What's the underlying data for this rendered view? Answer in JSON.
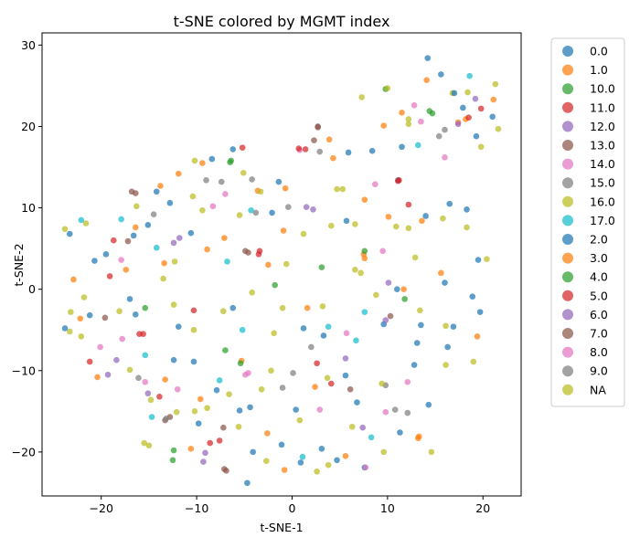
{
  "chart_data": {
    "type": "scatter",
    "title": "t-SNE colored by MGMT index",
    "xlabel": "t-SNE-1",
    "ylabel": "t-SNE-2",
    "xlim": [
      -26.2,
      24
    ],
    "ylim": [
      -25.4,
      31.5
    ],
    "xticks": [
      -20,
      -10,
      0,
      10,
      20
    ],
    "yticks": [
      -20,
      -10,
      0,
      10,
      20,
      30
    ],
    "grid": false,
    "legend_position": "right-outside-top",
    "series": [
      {
        "name": "0.0",
        "color": "#1f77b4",
        "points": [
          [
            -23.3,
            6.8
          ],
          [
            -19.5,
            4.3
          ],
          [
            -14.2,
            12
          ],
          [
            -8.4,
            16
          ],
          [
            -6.2,
            17.2
          ],
          [
            -1.4,
            13.2
          ],
          [
            5.9,
            16.8
          ],
          [
            8.4,
            17
          ],
          [
            11.1,
            13.4
          ],
          [
            14.2,
            28.4
          ],
          [
            15.6,
            26.4
          ],
          [
            17.9,
            22.3
          ],
          [
            19.3,
            18.8
          ],
          [
            21,
            21.2
          ],
          [
            14,
            9
          ],
          [
            18.3,
            9.8
          ],
          [
            16,
            0.8
          ],
          [
            19.5,
            3.6
          ],
          [
            11,
            0
          ],
          [
            5.7,
            8.4
          ],
          [
            -2.1,
            9.4
          ],
          [
            -10.6,
            6.9
          ],
          [
            -12.8,
            10.6
          ],
          [
            -15.1,
            7.9
          ],
          [
            -16.4,
            -3.1
          ],
          [
            -11.9,
            -4.6
          ],
          [
            -6.2,
            -2.3
          ],
          [
            1.2,
            -4.8
          ],
          [
            3.3,
            -5.7
          ],
          [
            9.6,
            -4.3
          ],
          [
            13.1,
            -6.6
          ],
          [
            16.9,
            -4.6
          ],
          [
            19.7,
            -2.8
          ],
          [
            -10.3,
            -8.9
          ],
          [
            -7.9,
            -12.4
          ],
          [
            -4.4,
            -14.5
          ],
          [
            0.4,
            -14.8
          ],
          [
            6.8,
            -13.9
          ],
          [
            12.8,
            -9.3
          ],
          [
            14.3,
            -14.2
          ],
          [
            -9.8,
            -16.5
          ],
          [
            -4.7,
            -23.8
          ],
          [
            0.9,
            -21.3
          ],
          [
            4.7,
            -21
          ],
          [
            7.6,
            -21.9
          ]
        ]
      },
      {
        "name": "1.0",
        "color": "#ff7f0e",
        "points": [
          [
            -11.9,
            14.2
          ],
          [
            -9.4,
            15.5
          ],
          [
            -0.7,
            12.4
          ],
          [
            3.9,
            18.4
          ],
          [
            9.6,
            20.1
          ],
          [
            14.1,
            25.7
          ],
          [
            18.2,
            20.9
          ],
          [
            21.1,
            23.3
          ],
          [
            7.6,
            11
          ],
          [
            10.1,
            8.9
          ],
          [
            13.6,
            8.4
          ],
          [
            15.6,
            2
          ],
          [
            -13.4,
            3.2
          ],
          [
            -7.1,
            6.3
          ],
          [
            -0.9,
            7.2
          ],
          [
            1.6,
            -2.3
          ],
          [
            7.5,
            4.3
          ],
          [
            11.7,
            0
          ],
          [
            19.4,
            -5.8
          ],
          [
            -13.3,
            -11.1
          ],
          [
            -9.6,
            -13.5
          ],
          [
            -5.3,
            -8.8
          ],
          [
            -2.6,
            -17.7
          ],
          [
            2.4,
            -12
          ],
          [
            5.6,
            -20.5
          ],
          [
            13.2,
            -18.3
          ],
          [
            -17.4,
            2.4
          ],
          [
            -20.4,
            -10.8
          ],
          [
            -22.2,
            -3.6
          ]
        ]
      },
      {
        "name": "10.0",
        "color": "#2ca02c",
        "points": [
          [
            9.8,
            24.6
          ],
          [
            14.4,
            21.9
          ],
          [
            -6.4,
            15.8
          ],
          [
            -15.4,
            -2.3
          ],
          [
            -7,
            -7.5
          ],
          [
            3.1,
            2.7
          ],
          [
            -12.4,
            -19.8
          ]
        ]
      },
      {
        "name": "11.0",
        "color": "#d62728",
        "points": [
          [
            -5.2,
            17.4
          ],
          [
            1.4,
            17.2
          ],
          [
            11.2,
            13.4
          ],
          [
            19.8,
            22.2
          ],
          [
            -18.7,
            6
          ],
          [
            -3.4,
            4.7
          ],
          [
            -16,
            -5.5
          ],
          [
            -21.2,
            -8.9
          ],
          [
            2.6,
            -9.1
          ],
          [
            -7.6,
            -18.6
          ],
          [
            -10.3,
            -2.6
          ]
        ]
      },
      {
        "name": "12.0",
        "color": "#9467bd",
        "points": [
          [
            19.2,
            23.4
          ],
          [
            -11.8,
            6.3
          ],
          [
            2.2,
            9.8
          ],
          [
            -18.4,
            -8.7
          ],
          [
            10.1,
            0.8
          ],
          [
            -15.1,
            -12.8
          ],
          [
            7.4,
            -17
          ],
          [
            -9.1,
            -20.1
          ]
        ]
      },
      {
        "name": "13.0",
        "color": "#8c564b",
        "points": [
          [
            2.7,
            20
          ],
          [
            -16.8,
            12
          ],
          [
            -17.2,
            5.9
          ],
          [
            -4.9,
            4.7
          ],
          [
            2.3,
            18.3
          ],
          [
            -19.6,
            -3.5
          ],
          [
            -13.3,
            -16.1
          ],
          [
            -7.2,
            -17
          ],
          [
            10.3,
            -3.3
          ],
          [
            -6.9,
            -22.3
          ]
        ]
      },
      {
        "name": "14.0",
        "color": "#e377c2",
        "points": [
          [
            0.8,
            17.1
          ],
          [
            8.7,
            12.9
          ],
          [
            12.8,
            22.6
          ],
          [
            16,
            16.2
          ],
          [
            -17.9,
            3.6
          ],
          [
            -8.3,
            10.2
          ],
          [
            -15.4,
            -11.4
          ],
          [
            -4.9,
            -10.5
          ],
          [
            5.7,
            -5.4
          ],
          [
            9.8,
            -15.1
          ],
          [
            7.7,
            -21.9
          ],
          [
            -20.1,
            -7.1
          ]
        ]
      },
      {
        "name": "15.0",
        "color": "#7f7f7f",
        "points": [
          [
            -4.2,
            13.5
          ],
          [
            2.9,
            16.9
          ],
          [
            15.4,
            18.8
          ],
          [
            -0.4,
            10.1
          ],
          [
            -14.5,
            9.2
          ],
          [
            2,
            -7.1
          ],
          [
            -16.1,
            -10.9
          ],
          [
            -1,
            -12.1
          ],
          [
            9.8,
            -11.8
          ],
          [
            12.1,
            -15.2
          ],
          [
            -7.4,
            13.2
          ]
        ]
      },
      {
        "name": "16.0",
        "color": "#bcbd22",
        "points": [
          [
            -23.8,
            7.4
          ],
          [
            -16.3,
            10.2
          ],
          [
            -10.4,
            11.4
          ],
          [
            -5.5,
            9.1
          ],
          [
            1.2,
            6.8
          ],
          [
            5.3,
            12.3
          ],
          [
            10,
            24.7
          ],
          [
            12.2,
            20.3
          ],
          [
            16.8,
            24.1
          ],
          [
            21.3,
            25.2
          ],
          [
            -12.4,
            -1.9
          ],
          [
            -4.2,
            -0.4
          ],
          [
            6.6,
            2.4
          ],
          [
            12.2,
            7.5
          ],
          [
            -21.8,
            -1
          ],
          [
            -15,
            -19.2
          ],
          [
            -10.3,
            -5
          ],
          [
            -2.2,
            -10
          ],
          [
            3.7,
            -10.9
          ],
          [
            9.4,
            -11.6
          ],
          [
            16.1,
            -9.3
          ],
          [
            -12.1,
            -15.1
          ],
          [
            -5.6,
            -16.9
          ],
          [
            3.8,
            -21.6
          ],
          [
            -23.3,
            -5.2
          ],
          [
            -21.6,
            8.1
          ],
          [
            6.6,
            8
          ],
          [
            18.3,
            7.6
          ],
          [
            -13.5,
            1.3
          ],
          [
            -1,
            -2.3
          ]
        ]
      },
      {
        "name": "17.0",
        "color": "#17becf",
        "points": [
          [
            -22.1,
            8.5
          ],
          [
            -17.9,
            8.6
          ],
          [
            -14.2,
            5.1
          ],
          [
            -6.8,
            3.4
          ],
          [
            -4.3,
            9.7
          ],
          [
            6.7,
            -6.3
          ],
          [
            7.6,
            -2.8
          ],
          [
            13.2,
            17.7
          ],
          [
            18.6,
            26.2
          ],
          [
            -15.4,
            -8.1
          ],
          [
            -5.2,
            -5
          ],
          [
            3.8,
            -4.6
          ],
          [
            -14.7,
            -15.7
          ],
          [
            -7.6,
            -11.2
          ],
          [
            1.1,
            -20.6
          ],
          [
            8.3,
            -18.2
          ]
        ]
      },
      {
        "name": "2.0",
        "color": "#1f77b4",
        "points": [
          [
            -21.2,
            -3.2
          ],
          [
            -12.4,
            -8.7
          ],
          [
            -4.1,
            -20
          ],
          [
            3.1,
            -19.6
          ],
          [
            11.3,
            -17.6
          ],
          [
            16.3,
            -7.1
          ],
          [
            18.9,
            -0.9
          ],
          [
            16.5,
            10.5
          ],
          [
            11.5,
            17.5
          ],
          [
            17,
            24.1
          ],
          [
            -20.7,
            3.5
          ],
          [
            -17,
            -1.2
          ],
          [
            -5.5,
            -14.9
          ],
          [
            -1.1,
            -19.1
          ],
          [
            5.6,
            -10.6
          ],
          [
            13.5,
            -4.4
          ],
          [
            -23.8,
            -4.8
          ],
          [
            -16.6,
            6.6
          ]
        ]
      },
      {
        "name": "3.0",
        "color": "#ff7f0e",
        "points": [
          [
            -13.8,
            12.7
          ],
          [
            -3.6,
            12.1
          ],
          [
            4.3,
            16.1
          ],
          [
            11.5,
            21.7
          ],
          [
            17.4,
            20.5
          ],
          [
            -16.4,
            7.6
          ],
          [
            -8.9,
            4.9
          ],
          [
            -2.5,
            3
          ],
          [
            7.6,
            3.8
          ],
          [
            13.3,
            -18.1
          ],
          [
            -0.8,
            -22.2
          ],
          [
            -10.6,
            -19.6
          ],
          [
            -22.9,
            1.2
          ]
        ]
      },
      {
        "name": "4.0",
        "color": "#2ca02c",
        "points": [
          [
            -6.5,
            15.6
          ],
          [
            14.7,
            21.6
          ],
          [
            -1.8,
            0.5
          ],
          [
            7.6,
            4.7
          ],
          [
            -5.4,
            -9.1
          ],
          [
            -12.5,
            -21
          ],
          [
            11.8,
            -1.2
          ]
        ]
      },
      {
        "name": "5.0",
        "color": "#d62728",
        "points": [
          [
            0.7,
            17.3
          ],
          [
            11.1,
            13.3
          ],
          [
            -19.1,
            1.6
          ],
          [
            -15.6,
            -5.5
          ],
          [
            -3.5,
            4.3
          ],
          [
            4.1,
            -11.6
          ],
          [
            -8.6,
            -18.9
          ],
          [
            -13.9,
            -13.2
          ],
          [
            12.2,
            10.4
          ],
          [
            18.5,
            21.1
          ]
        ]
      },
      {
        "name": "6.0",
        "color": "#9467bd",
        "points": [
          [
            17.4,
            20.3
          ],
          [
            -12.4,
            5.7
          ],
          [
            1.5,
            10.1
          ],
          [
            -19.3,
            -10.5
          ],
          [
            5.6,
            -8.5
          ],
          [
            -9.3,
            -21.2
          ],
          [
            9.8,
            -3.8
          ]
        ]
      },
      {
        "name": "7.0",
        "color": "#8c564b",
        "points": [
          [
            2.7,
            19.9
          ],
          [
            -16.4,
            11.8
          ],
          [
            -4.6,
            4.5
          ],
          [
            -12.8,
            -15.7
          ],
          [
            6.1,
            -12.3
          ],
          [
            -7.1,
            -22.1
          ]
        ]
      },
      {
        "name": "8.0",
        "color": "#e377c2",
        "points": [
          [
            13.5,
            20.6
          ],
          [
            -7,
            11.7
          ],
          [
            9.5,
            4.7
          ],
          [
            -12,
            -12.3
          ],
          [
            2.9,
            -14.8
          ],
          [
            12.1,
            -11.4
          ],
          [
            -17.8,
            -6.1
          ],
          [
            -4.6,
            -10.3
          ]
        ]
      },
      {
        "name": "9.0",
        "color": "#7f7f7f",
        "points": [
          [
            -9,
            13.4
          ],
          [
            16,
            19.6
          ],
          [
            -3.8,
            9.4
          ],
          [
            0.1,
            -10.3
          ],
          [
            -13.2,
            -15.9
          ],
          [
            10.8,
            -14.8
          ]
        ]
      },
      {
        "name": "NA",
        "color": "#bcbd22",
        "points": [
          [
            -10.2,
            15.8
          ],
          [
            -5.1,
            14.3
          ],
          [
            7.3,
            23.6
          ],
          [
            12.2,
            20.9
          ],
          [
            18.4,
            24.2
          ],
          [
            21.6,
            19.7
          ],
          [
            -9.4,
            9.7
          ],
          [
            -3.3,
            12
          ],
          [
            4.7,
            12.3
          ],
          [
            10.9,
            7.7
          ],
          [
            15.8,
            8.7
          ],
          [
            20.4,
            3.7
          ],
          [
            -23.2,
            -2.8
          ],
          [
            -18.1,
            -2.7
          ],
          [
            -12.3,
            3.4
          ],
          [
            -7.2,
            -2.7
          ],
          [
            -1.9,
            -5.4
          ],
          [
            3.2,
            -2.1
          ],
          [
            7.2,
            2
          ],
          [
            13.4,
            -2.6
          ],
          [
            19,
            -8.9
          ],
          [
            -22.1,
            -5.8
          ],
          [
            -17,
            -9.9
          ],
          [
            -14.8,
            -13.6
          ],
          [
            -10.2,
            -15
          ],
          [
            -6.6,
            -12.9
          ],
          [
            -3.2,
            -12.3
          ],
          [
            0.8,
            -16.1
          ],
          [
            6.3,
            -16.9
          ],
          [
            9.6,
            -20
          ],
          [
            14.6,
            -20
          ],
          [
            -15.5,
            -18.9
          ],
          [
            -8.9,
            -14.6
          ],
          [
            -2.7,
            -21.1
          ],
          [
            2.6,
            -22.4
          ],
          [
            -0.6,
            3.1
          ],
          [
            4.1,
            7.8
          ],
          [
            8.8,
            -0.7
          ],
          [
            12.9,
            3.9
          ],
          [
            16.1,
            -4.5
          ],
          [
            19.8,
            17.5
          ]
        ]
      }
    ]
  }
}
